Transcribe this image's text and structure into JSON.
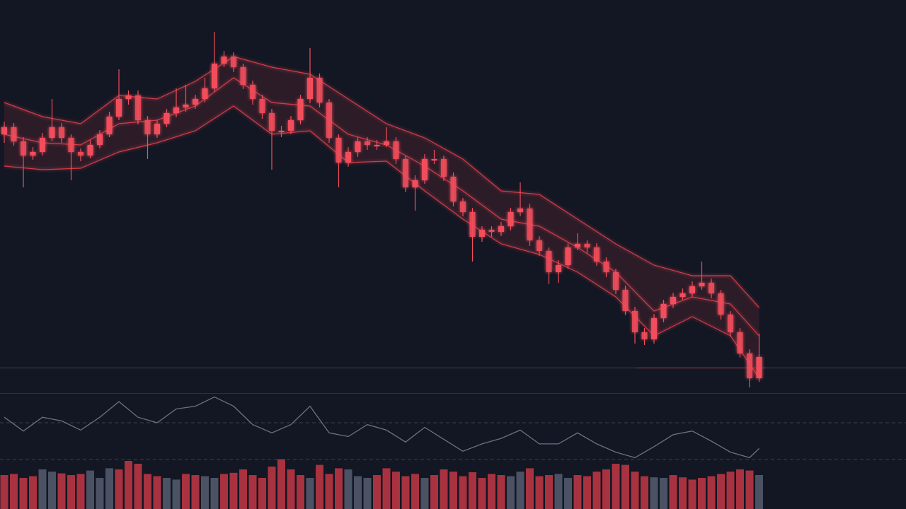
{
  "chart_data": [
    {
      "type": "candlestick",
      "color": "#f24e5c",
      "x": [
        0,
        1,
        2,
        3,
        4,
        5,
        6,
        7,
        8,
        9,
        10,
        11,
        12,
        13,
        14,
        15,
        16,
        17,
        18,
        19,
        20,
        21,
        22,
        23,
        24,
        25,
        26,
        27,
        28,
        29,
        30,
        31,
        32,
        33,
        34,
        35,
        36,
        37,
        38,
        39,
        40,
        41,
        42,
        43,
        44,
        45,
        46,
        47,
        48,
        49,
        50,
        51,
        52,
        53,
        54,
        55,
        56,
        57,
        58,
        59,
        60,
        61,
        62,
        63,
        64,
        65,
        66,
        67,
        68,
        69,
        70,
        71,
        72,
        73,
        74,
        75,
        76,
        77,
        78,
        79
      ],
      "open": [
        330,
        340,
        320,
        300,
        305,
        325,
        340,
        325,
        305,
        300,
        315,
        330,
        355,
        380,
        385,
        350,
        330,
        345,
        360,
        368,
        372,
        380,
        395,
        430,
        440,
        425,
        400,
        380,
        360,
        335,
        335,
        350,
        380,
        410,
        375,
        325,
        290,
        305,
        320,
        315,
        315,
        320,
        295,
        255,
        265,
        295,
        295,
        270,
        235,
        220,
        185,
        195,
        192,
        200,
        220,
        225,
        180,
        165,
        135,
        145,
        170,
        175,
        170,
        150,
        135,
        110,
        80,
        50,
        40,
        70,
        90,
        100,
        105,
        115,
        120,
        105,
        75,
        50,
        20,
        -15
      ],
      "high": [
        348,
        346,
        326,
        312,
        332,
        380,
        346,
        330,
        310,
        322,
        336,
        362,
        422,
        392,
        392,
        356,
        350,
        366,
        395,
        400,
        386,
        410,
        475,
        448,
        446,
        430,
        406,
        386,
        366,
        342,
        356,
        386,
        452,
        416,
        380,
        330,
        312,
        326,
        326,
        322,
        340,
        326,
        300,
        272,
        302,
        308,
        300,
        276,
        240,
        226,
        200,
        200,
        206,
        226,
        262,
        232,
        186,
        170,
        152,
        176,
        190,
        180,
        176,
        156,
        140,
        116,
        86,
        56,
        76,
        96,
        106,
        112,
        122,
        150,
        126,
        110,
        80,
        56,
        26,
        48
      ],
      "low": [
        318,
        314,
        255,
        294,
        300,
        320,
        318,
        265,
        292,
        296,
        310,
        326,
        350,
        372,
        344,
        295,
        325,
        340,
        354,
        362,
        366,
        375,
        390,
        425,
        418,
        394,
        372,
        352,
        280,
        326,
        330,
        344,
        374,
        368,
        318,
        255,
        284,
        298,
        308,
        308,
        312,
        288,
        248,
        222,
        260,
        288,
        264,
        228,
        214,
        150,
        178,
        185,
        186,
        194,
        214,
        172,
        158,
        118,
        120,
        140,
        166,
        162,
        144,
        128,
        104,
        74,
        34,
        32,
        34,
        64,
        84,
        96,
        100,
        110,
        98,
        68,
        44,
        14,
        -28,
        -20
      ],
      "close": [
        340,
        320,
        300,
        305,
        325,
        340,
        325,
        305,
        300,
        315,
        330,
        355,
        380,
        385,
        350,
        330,
        345,
        360,
        368,
        372,
        380,
        395,
        430,
        440,
        425,
        400,
        380,
        360,
        335,
        335,
        350,
        380,
        410,
        375,
        325,
        290,
        305,
        320,
        315,
        315,
        320,
        295,
        255,
        265,
        295,
        295,
        270,
        235,
        220,
        185,
        195,
        192,
        200,
        220,
        225,
        180,
        165,
        135,
        145,
        170,
        175,
        170,
        150,
        135,
        110,
        80,
        50,
        40,
        70,
        90,
        100,
        105,
        115,
        120,
        105,
        75,
        50,
        20,
        -15,
        15
      ],
      "bands": {
        "color": "#e8414f",
        "x": [
          0,
          4,
          8,
          12,
          16,
          20,
          24,
          28,
          32,
          36,
          40,
          44,
          48,
          52,
          56,
          60,
          64,
          68,
          72,
          76,
          79
        ],
        "upper": [
          375,
          355,
          345,
          385,
          380,
          405,
          440,
          425,
          415,
          380,
          345,
          325,
          295,
          250,
          245,
          210,
          175,
          145,
          130,
          130,
          85
        ],
        "middle": [
          330,
          318,
          315,
          345,
          350,
          370,
          410,
          375,
          370,
          330,
          315,
          285,
          250,
          210,
          200,
          170,
          135,
          80,
          100,
          90,
          45
        ],
        "lower": [
          285,
          280,
          282,
          305,
          318,
          335,
          370,
          330,
          335,
          290,
          292,
          250,
          210,
          175,
          160,
          135,
          100,
          45,
          72,
          45,
          -15
        ]
      },
      "xlim": [
        0,
        79
      ],
      "ylim": [
        -36,
        520
      ]
    },
    {
      "type": "line",
      "color": "#6b7280",
      "x": [
        0,
        2,
        4,
        6,
        8,
        10,
        12,
        14,
        16,
        18,
        20,
        22,
        24,
        26,
        28,
        30,
        32,
        34,
        36,
        38,
        40,
        42,
        44,
        46,
        48,
        50,
        52,
        54,
        56,
        58,
        60,
        62,
        64,
        66,
        68,
        70,
        72,
        74,
        76,
        78,
        79
      ],
      "values": [
        76,
        61,
        76,
        72,
        62,
        76,
        93,
        76,
        70,
        85,
        88,
        98,
        88,
        68,
        59,
        68,
        88,
        59,
        55,
        68,
        62,
        49,
        65,
        52,
        39,
        47,
        53,
        62,
        47,
        47,
        59,
        47,
        38,
        32,
        44,
        57,
        61,
        50,
        38,
        32,
        42
      ],
      "xlim": [
        0,
        79
      ],
      "ylim": [
        0,
        100
      ],
      "yticks": [
        30,
        70
      ],
      "grid": true
    },
    {
      "type": "bar",
      "values": [
        60,
        62,
        55,
        58,
        70,
        66,
        63,
        60,
        62,
        68,
        55,
        72,
        70,
        85,
        80,
        62,
        58,
        55,
        52,
        62,
        60,
        58,
        55,
        62,
        64,
        70,
        60,
        55,
        75,
        88,
        70,
        60,
        55,
        78,
        62,
        72,
        70,
        58,
        55,
        60,
        72,
        66,
        58,
        62,
        55,
        60,
        70,
        66,
        58,
        65,
        55,
        62,
        60,
        58,
        66,
        72,
        58,
        60,
        62,
        55,
        60,
        58,
        66,
        70,
        80,
        78,
        66,
        58,
        56,
        55,
        60,
        56,
        52,
        55,
        58,
        62,
        66,
        70,
        68,
        60
      ],
      "colors": [
        "#a83240",
        "#a83240",
        "#a83240",
        "#a83240",
        "#4b5263",
        "#4b5263",
        "#a83240",
        "#a83240",
        "#a83240",
        "#4b5263",
        "#4b5263",
        "#4b5263",
        "#a83240",
        "#a83240",
        "#a83240",
        "#a83240",
        "#a83240",
        "#4b5263",
        "#4b5263",
        "#a83240",
        "#a83240",
        "#4b5263",
        "#4b5263",
        "#a83240",
        "#a83240",
        "#a83240",
        "#a83240",
        "#a83240",
        "#a83240",
        "#a83240",
        "#a83240",
        "#a83240",
        "#4b5263",
        "#a83240",
        "#a83240",
        "#a83240",
        "#4b5263",
        "#4b5263",
        "#4b5263",
        "#a83240",
        "#a83240",
        "#a83240",
        "#a83240",
        "#a83240",
        "#4b5263",
        "#a83240",
        "#a83240",
        "#a83240",
        "#a83240",
        "#a83240",
        "#a83240",
        "#a83240",
        "#a83240",
        "#4b5263",
        "#4b5263",
        "#a83240",
        "#a83240",
        "#a83240",
        "#4b5263",
        "#4b5263",
        "#a83240",
        "#a83240",
        "#a83240",
        "#a83240",
        "#a83240",
        "#a83240",
        "#a83240",
        "#a83240",
        "#4b5263",
        "#4b5263",
        "#a83240",
        "#a83240",
        "#a83240",
        "#a83240",
        "#a83240",
        "#a83240",
        "#a83240",
        "#a83240",
        "#a83240",
        "#4b5263"
      ],
      "ylim": [
        0,
        100
      ]
    }
  ]
}
